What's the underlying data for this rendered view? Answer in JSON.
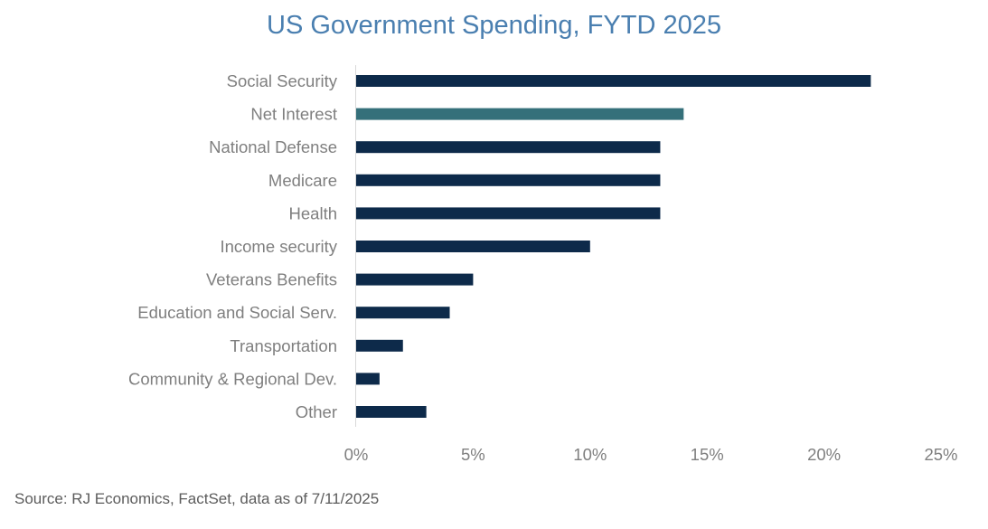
{
  "chart_data": {
    "type": "bar",
    "orientation": "horizontal",
    "title": "US Government Spending, FYTD 2025",
    "categories": [
      "Social Security",
      "Net Interest",
      "National Defense",
      "Medicare",
      "Health",
      "Income security",
      "Veterans Benefits",
      "Education and Social Serv.",
      "Transportation",
      "Community & Regional Dev.",
      "Other"
    ],
    "values": [
      22,
      14,
      13,
      13,
      13,
      10,
      5,
      4,
      2,
      1,
      3
    ],
    "xlim": [
      0,
      25
    ],
    "x_ticks": [
      0,
      5,
      10,
      15,
      20,
      25
    ],
    "x_tick_labels": [
      "0%",
      "5%",
      "10%",
      "15%",
      "20%",
      "25%"
    ],
    "xlabel": "",
    "ylabel": "",
    "grid": false,
    "colors": {
      "default": "#0d2a4a",
      "highlight": "#35707a"
    },
    "highlight_category": "Net Interest"
  },
  "source_note": "Source: RJ Economics, FactSet, data as of 7/11/2025"
}
